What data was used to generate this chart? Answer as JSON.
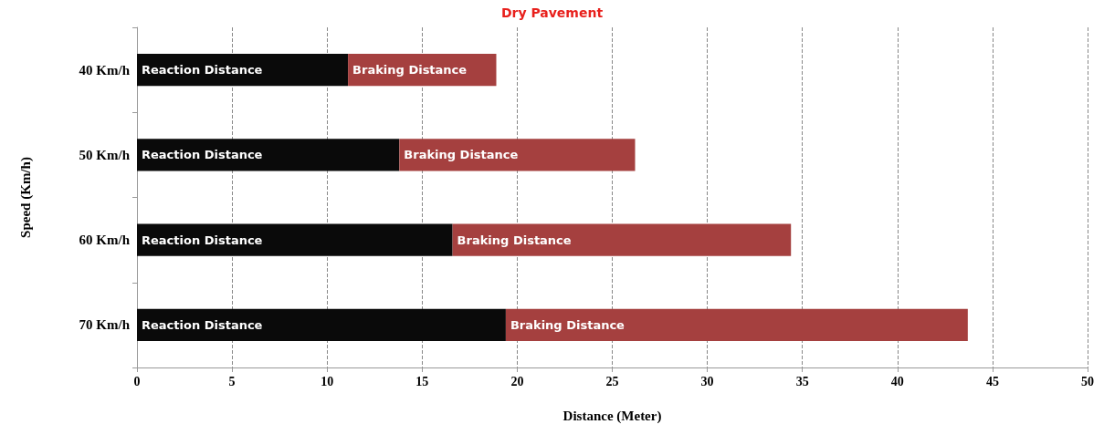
{
  "chart_data": {
    "type": "bar",
    "title": "Dry Pavement",
    "xlabel": "Distance (Meter)",
    "ylabel": "Speed (Km/h)",
    "orientation": "horizontal",
    "stacked": true,
    "categories": [
      "40 Km/h",
      "50 Km/h",
      "60 Km/h",
      "70 Km/h"
    ],
    "series": [
      {
        "name": "Reaction Distance",
        "color": "#0a0a0a",
        "values": [
          11.1,
          13.8,
          16.6,
          19.4
        ]
      },
      {
        "name": "Braking Distance",
        "color": "#a5403f",
        "values": [
          7.8,
          12.4,
          17.8,
          24.3
        ]
      }
    ],
    "xlim": [
      0,
      50
    ],
    "xticks": [
      0,
      5,
      10,
      15,
      20,
      25,
      30,
      35,
      40,
      45,
      50
    ],
    "grid": "x",
    "legend": false
  }
}
